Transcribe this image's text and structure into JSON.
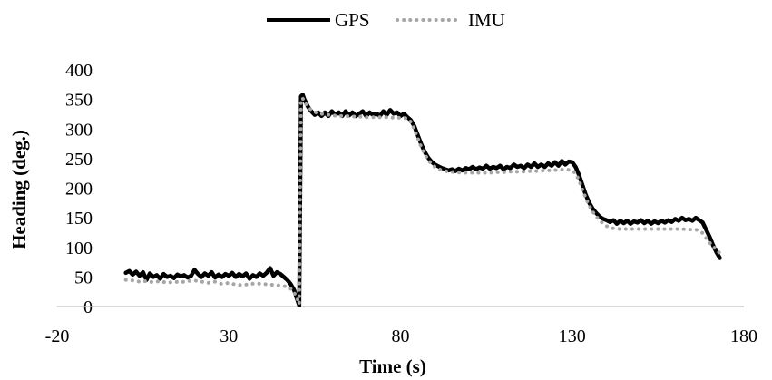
{
  "chart_data": {
    "type": "line",
    "title": "",
    "xlabel": "Time (s)",
    "ylabel": "Heading (deg.)",
    "xlim": [
      -20,
      180
    ],
    "ylim": [
      0,
      400
    ],
    "x_ticks": [
      -20,
      30,
      80,
      130,
      180
    ],
    "y_ticks": [
      0,
      50,
      100,
      150,
      200,
      250,
      300,
      350,
      400
    ],
    "grid": false,
    "legend": "top-center",
    "series": [
      {
        "name": "GPS",
        "color": "#000000",
        "style": "solid",
        "points": [
          [
            0,
            57
          ],
          [
            1,
            60
          ],
          [
            2,
            54
          ],
          [
            3,
            59
          ],
          [
            4,
            52
          ],
          [
            5,
            58
          ],
          [
            6,
            45
          ],
          [
            7,
            56
          ],
          [
            8,
            50
          ],
          [
            9,
            53
          ],
          [
            10,
            47
          ],
          [
            11,
            55
          ],
          [
            12,
            50
          ],
          [
            13,
            52
          ],
          [
            14,
            48
          ],
          [
            15,
            54
          ],
          [
            16,
            51
          ],
          [
            17,
            53
          ],
          [
            18,
            49
          ],
          [
            19,
            52
          ],
          [
            20,
            62
          ],
          [
            21,
            55
          ],
          [
            22,
            50
          ],
          [
            23,
            56
          ],
          [
            24,
            52
          ],
          [
            25,
            58
          ],
          [
            26,
            49
          ],
          [
            27,
            54
          ],
          [
            28,
            50
          ],
          [
            29,
            55
          ],
          [
            30,
            52
          ],
          [
            31,
            57
          ],
          [
            32,
            50
          ],
          [
            33,
            55
          ],
          [
            34,
            51
          ],
          [
            35,
            56
          ],
          [
            36,
            47
          ],
          [
            37,
            53
          ],
          [
            38,
            50
          ],
          [
            39,
            56
          ],
          [
            40,
            52
          ],
          [
            41,
            57
          ],
          [
            42,
            65
          ],
          [
            43,
            52
          ],
          [
            44,
            58
          ],
          [
            45,
            55
          ],
          [
            46,
            50
          ],
          [
            47,
            45
          ],
          [
            48,
            38
          ],
          [
            49,
            28
          ],
          [
            50,
            10
          ],
          [
            50.5,
            2
          ],
          [
            51,
            355
          ],
          [
            51.5,
            358
          ],
          [
            52,
            350
          ],
          [
            53,
            338
          ],
          [
            54,
            330
          ],
          [
            55,
            324
          ],
          [
            56,
            328
          ],
          [
            57,
            322
          ],
          [
            58,
            328
          ],
          [
            59,
            322
          ],
          [
            60,
            330
          ],
          [
            61,
            324
          ],
          [
            62,
            328
          ],
          [
            63,
            322
          ],
          [
            64,
            330
          ],
          [
            65,
            323
          ],
          [
            66,
            328
          ],
          [
            67,
            322
          ],
          [
            68,
            326
          ],
          [
            69,
            330
          ],
          [
            70,
            322
          ],
          [
            71,
            328
          ],
          [
            72,
            324
          ],
          [
            73,
            326
          ],
          [
            74,
            322
          ],
          [
            75,
            330
          ],
          [
            76,
            324
          ],
          [
            77,
            332
          ],
          [
            78,
            326
          ],
          [
            79,
            328
          ],
          [
            80,
            322
          ],
          [
            81,
            326
          ],
          [
            82,
            320
          ],
          [
            83,
            315
          ],
          [
            84,
            305
          ],
          [
            85,
            290
          ],
          [
            86,
            275
          ],
          [
            87,
            262
          ],
          [
            88,
            252
          ],
          [
            89,
            245
          ],
          [
            90,
            240
          ],
          [
            91,
            237
          ],
          [
            92,
            234
          ],
          [
            93,
            232
          ],
          [
            94,
            230
          ],
          [
            95,
            232
          ],
          [
            96,
            229
          ],
          [
            97,
            233
          ],
          [
            98,
            230
          ],
          [
            99,
            234
          ],
          [
            100,
            232
          ],
          [
            101,
            236
          ],
          [
            102,
            232
          ],
          [
            103,
            235
          ],
          [
            104,
            233
          ],
          [
            105,
            238
          ],
          [
            106,
            233
          ],
          [
            107,
            236
          ],
          [
            108,
            234
          ],
          [
            109,
            238
          ],
          [
            110,
            232
          ],
          [
            111,
            236
          ],
          [
            112,
            234
          ],
          [
            113,
            240
          ],
          [
            114,
            236
          ],
          [
            115,
            238
          ],
          [
            116,
            234
          ],
          [
            117,
            240
          ],
          [
            118,
            236
          ],
          [
            119,
            242
          ],
          [
            120,
            236
          ],
          [
            121,
            240
          ],
          [
            122,
            236
          ],
          [
            123,
            242
          ],
          [
            124,
            238
          ],
          [
            125,
            244
          ],
          [
            126,
            238
          ],
          [
            127,
            246
          ],
          [
            128,
            240
          ],
          [
            129,
            245
          ],
          [
            130,
            244
          ],
          [
            131,
            236
          ],
          [
            132,
            222
          ],
          [
            133,
            205
          ],
          [
            134,
            188
          ],
          [
            135,
            175
          ],
          [
            136,
            165
          ],
          [
            137,
            158
          ],
          [
            138,
            152
          ],
          [
            139,
            148
          ],
          [
            140,
            146
          ],
          [
            141,
            143
          ],
          [
            142,
            146
          ],
          [
            143,
            140
          ],
          [
            144,
            145
          ],
          [
            145,
            141
          ],
          [
            146,
            145
          ],
          [
            147,
            140
          ],
          [
            148,
            144
          ],
          [
            149,
            142
          ],
          [
            150,
            146
          ],
          [
            151,
            141
          ],
          [
            152,
            145
          ],
          [
            153,
            140
          ],
          [
            154,
            144
          ],
          [
            155,
            141
          ],
          [
            156,
            145
          ],
          [
            157,
            142
          ],
          [
            158,
            146
          ],
          [
            159,
            143
          ],
          [
            160,
            148
          ],
          [
            161,
            145
          ],
          [
            162,
            150
          ],
          [
            163,
            146
          ],
          [
            164,
            148
          ],
          [
            165,
            145
          ],
          [
            166,
            150
          ],
          [
            167,
            146
          ],
          [
            168,
            142
          ],
          [
            169,
            130
          ],
          [
            170,
            118
          ],
          [
            171,
            104
          ],
          [
            172,
            92
          ],
          [
            173,
            82
          ]
        ]
      },
      {
        "name": "IMU",
        "color": "#a6a6a6",
        "style": "dotted",
        "points": [
          [
            0,
            45
          ],
          [
            2,
            44
          ],
          [
            4,
            42
          ],
          [
            6,
            43
          ],
          [
            8,
            41
          ],
          [
            10,
            43
          ],
          [
            12,
            40
          ],
          [
            14,
            42
          ],
          [
            16,
            41
          ],
          [
            18,
            43
          ],
          [
            20,
            44
          ],
          [
            22,
            42
          ],
          [
            24,
            40
          ],
          [
            26,
            42
          ],
          [
            28,
            38
          ],
          [
            30,
            40
          ],
          [
            32,
            37
          ],
          [
            34,
            36
          ],
          [
            36,
            38
          ],
          [
            38,
            39
          ],
          [
            40,
            38
          ],
          [
            42,
            37
          ],
          [
            44,
            36
          ],
          [
            46,
            35
          ],
          [
            48,
            30
          ],
          [
            49,
            24
          ],
          [
            50,
            12
          ],
          [
            50.5,
            4
          ],
          [
            51,
            350
          ],
          [
            51.5,
            352
          ],
          [
            52,
            345
          ],
          [
            53,
            338
          ],
          [
            54,
            332
          ],
          [
            56,
            326
          ],
          [
            58,
            325
          ],
          [
            60,
            323
          ],
          [
            62,
            322
          ],
          [
            64,
            322
          ],
          [
            66,
            321
          ],
          [
            68,
            321
          ],
          [
            70,
            320
          ],
          [
            72,
            320
          ],
          [
            74,
            320
          ],
          [
            76,
            320
          ],
          [
            78,
            319
          ],
          [
            80,
            319
          ],
          [
            82,
            318
          ],
          [
            83,
            312
          ],
          [
            84,
            300
          ],
          [
            85,
            285
          ],
          [
            86,
            270
          ],
          [
            87,
            258
          ],
          [
            88,
            248
          ],
          [
            89,
            241
          ],
          [
            90,
            236
          ],
          [
            92,
            230
          ],
          [
            94,
            228
          ],
          [
            96,
            227
          ],
          [
            98,
            226
          ],
          [
            100,
            226
          ],
          [
            102,
            226
          ],
          [
            104,
            226
          ],
          [
            106,
            226
          ],
          [
            108,
            227
          ],
          [
            110,
            227
          ],
          [
            112,
            228
          ],
          [
            114,
            228
          ],
          [
            116,
            228
          ],
          [
            118,
            229
          ],
          [
            120,
            229
          ],
          [
            122,
            230
          ],
          [
            124,
            230
          ],
          [
            126,
            231
          ],
          [
            128,
            232
          ],
          [
            130,
            230
          ],
          [
            131,
            225
          ],
          [
            132,
            213
          ],
          [
            133,
            197
          ],
          [
            134,
            183
          ],
          [
            135,
            170
          ],
          [
            136,
            160
          ],
          [
            137,
            152
          ],
          [
            138,
            146
          ],
          [
            139,
            140
          ],
          [
            140,
            136
          ],
          [
            142,
            132
          ],
          [
            144,
            131
          ],
          [
            146,
            131
          ],
          [
            148,
            131
          ],
          [
            150,
            131
          ],
          [
            152,
            131
          ],
          [
            154,
            131
          ],
          [
            156,
            131
          ],
          [
            158,
            131
          ],
          [
            160,
            131
          ],
          [
            162,
            131
          ],
          [
            164,
            130
          ],
          [
            166,
            130
          ],
          [
            167,
            128
          ],
          [
            168,
            124
          ],
          [
            169,
            116
          ],
          [
            170,
            108
          ],
          [
            171,
            102
          ],
          [
            172,
            96
          ],
          [
            173,
            90
          ]
        ]
      }
    ]
  }
}
